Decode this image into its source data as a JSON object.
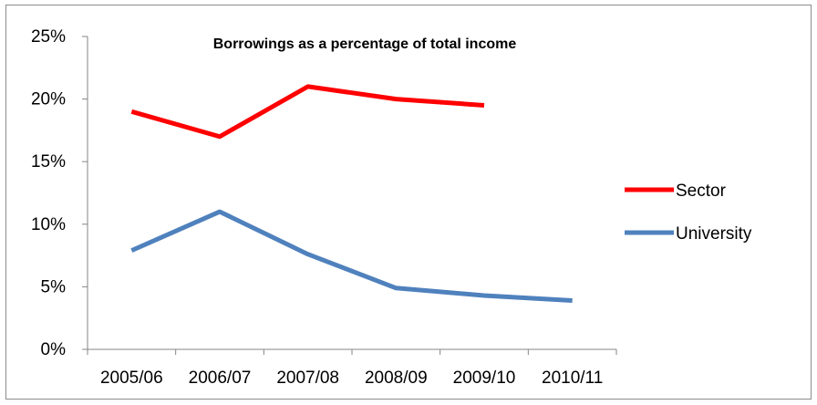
{
  "chart_data": {
    "type": "line",
    "title": "Borrowings as a percentage of total income",
    "xlabel": "",
    "ylabel": "",
    "categories": [
      "2005/06",
      "2006/07",
      "2007/08",
      "2008/09",
      "2009/10",
      "2010/11"
    ],
    "yticks": [
      "0%",
      "5%",
      "10%",
      "15%",
      "20%",
      "25%"
    ],
    "ylim": [
      0,
      25
    ],
    "grid": false,
    "legend_position": "right",
    "series": [
      {
        "name": "Sector",
        "color": "#ff0000",
        "values": [
          19.0,
          17.0,
          21.0,
          20.0,
          19.5,
          null
        ]
      },
      {
        "name": "University",
        "color": "#4f81bd",
        "values": [
          7.9,
          11.0,
          7.6,
          4.9,
          4.3,
          3.9
        ]
      }
    ]
  }
}
